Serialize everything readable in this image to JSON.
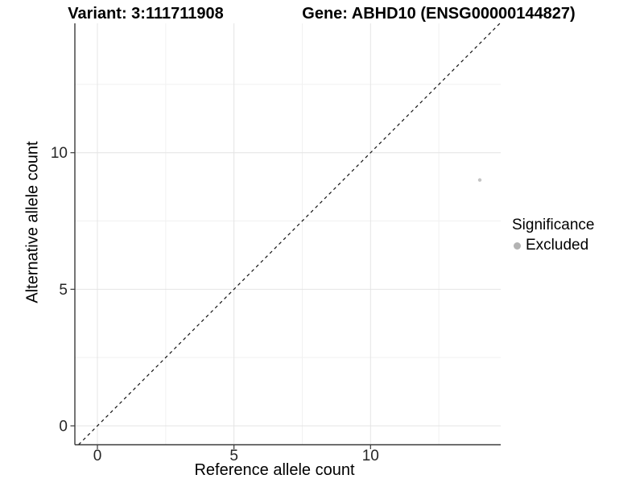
{
  "titles": {
    "variant": "Variant: 3:111711908",
    "gene": "Gene: ABHD10 (ENSG00000144827)"
  },
  "axes": {
    "x": {
      "label": "Reference allele count",
      "major_ticks": [
        0,
        5,
        10
      ],
      "minor_ticks": [
        2.5,
        7.5,
        12.5
      ]
    },
    "y": {
      "label": "Alternative allele count",
      "major_ticks": [
        0,
        5,
        10
      ],
      "minor_ticks": [
        2.5,
        7.5,
        12.5
      ]
    }
  },
  "legend": {
    "title": "Significance",
    "items": [
      {
        "label": "Excluded",
        "color": "#b3b3b3"
      }
    ]
  },
  "chart_data": {
    "type": "scatter",
    "title": "Variant: 3:111711908 | Gene: ABHD10 (ENSG00000144827)",
    "xlabel": "Reference allele count",
    "ylabel": "Alternative allele count",
    "xlim": [
      -0.83,
      14.77
    ],
    "ylim": [
      -0.69,
      14.74
    ],
    "grid": true,
    "legend_position": "right",
    "series": [
      {
        "name": "Excluded",
        "points": [
          {
            "x": 14,
            "y": 9
          }
        ],
        "color": "#c4c4c4"
      }
    ],
    "reference_line": {
      "type": "identity y=x",
      "style": "dashed",
      "color": "#111111"
    }
  },
  "colors": {
    "background": "#ffffff",
    "grid_major": "#e4e4e4",
    "grid_minor": "#f1f1f1",
    "axis_line": "#3a3a3a",
    "tick_label": "#262626",
    "point": "#c4c4c4",
    "legend_key": "#b3b3b3"
  }
}
